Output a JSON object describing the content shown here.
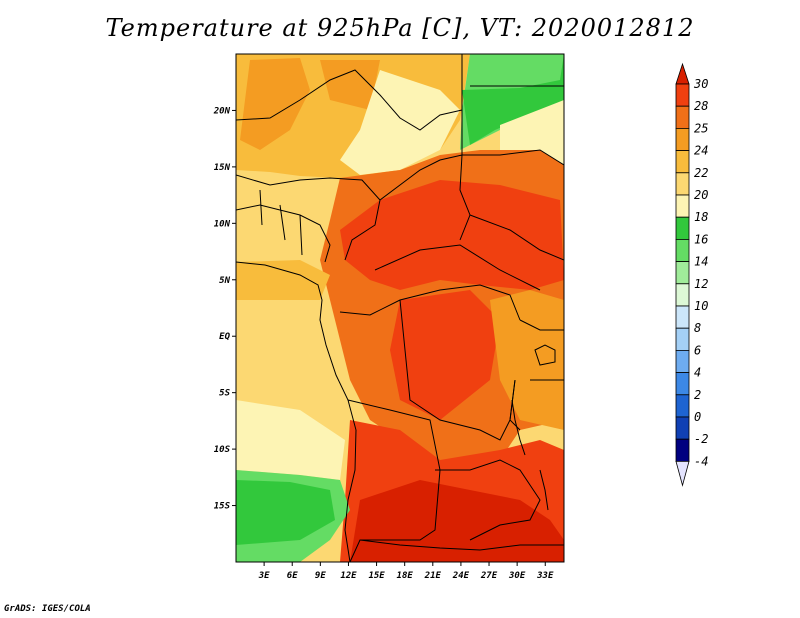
{
  "title": "Temperature at 925hPa [C], VT: 2020012812",
  "credit": "GrADS: IGES/COLA",
  "map": {
    "lon_range": [
      0,
      35
    ],
    "lat_range": [
      -20,
      25
    ],
    "lat_ticks": [
      "20N",
      "15N",
      "10N",
      "5N",
      "EQ",
      "5S",
      "10S",
      "15S"
    ],
    "lon_ticks": [
      "3E",
      "6E",
      "9E",
      "12E",
      "15E",
      "18E",
      "21E",
      "24E",
      "27E",
      "30E",
      "33E"
    ]
  },
  "colorbar": {
    "labels": [
      "30",
      "28",
      "25",
      "24",
      "22",
      "20",
      "18",
      "16",
      "14",
      "12",
      "10",
      "8",
      "6",
      "4",
      "2",
      "0",
      "-2",
      "-4"
    ],
    "colors": [
      "#d82000",
      "#f04010",
      "#f07018",
      "#f49c22",
      "#f8bc3c",
      "#fcd872",
      "#fdf4b4",
      "#32c83c",
      "#64dc64",
      "#a0ec9a",
      "#ddf8d6",
      "#cce6fa",
      "#a4d0f6",
      "#6eacf0",
      "#3c88e6",
      "#1e64d2",
      "#1040b4",
      "#000080",
      "#e4e4ff"
    ]
  }
}
